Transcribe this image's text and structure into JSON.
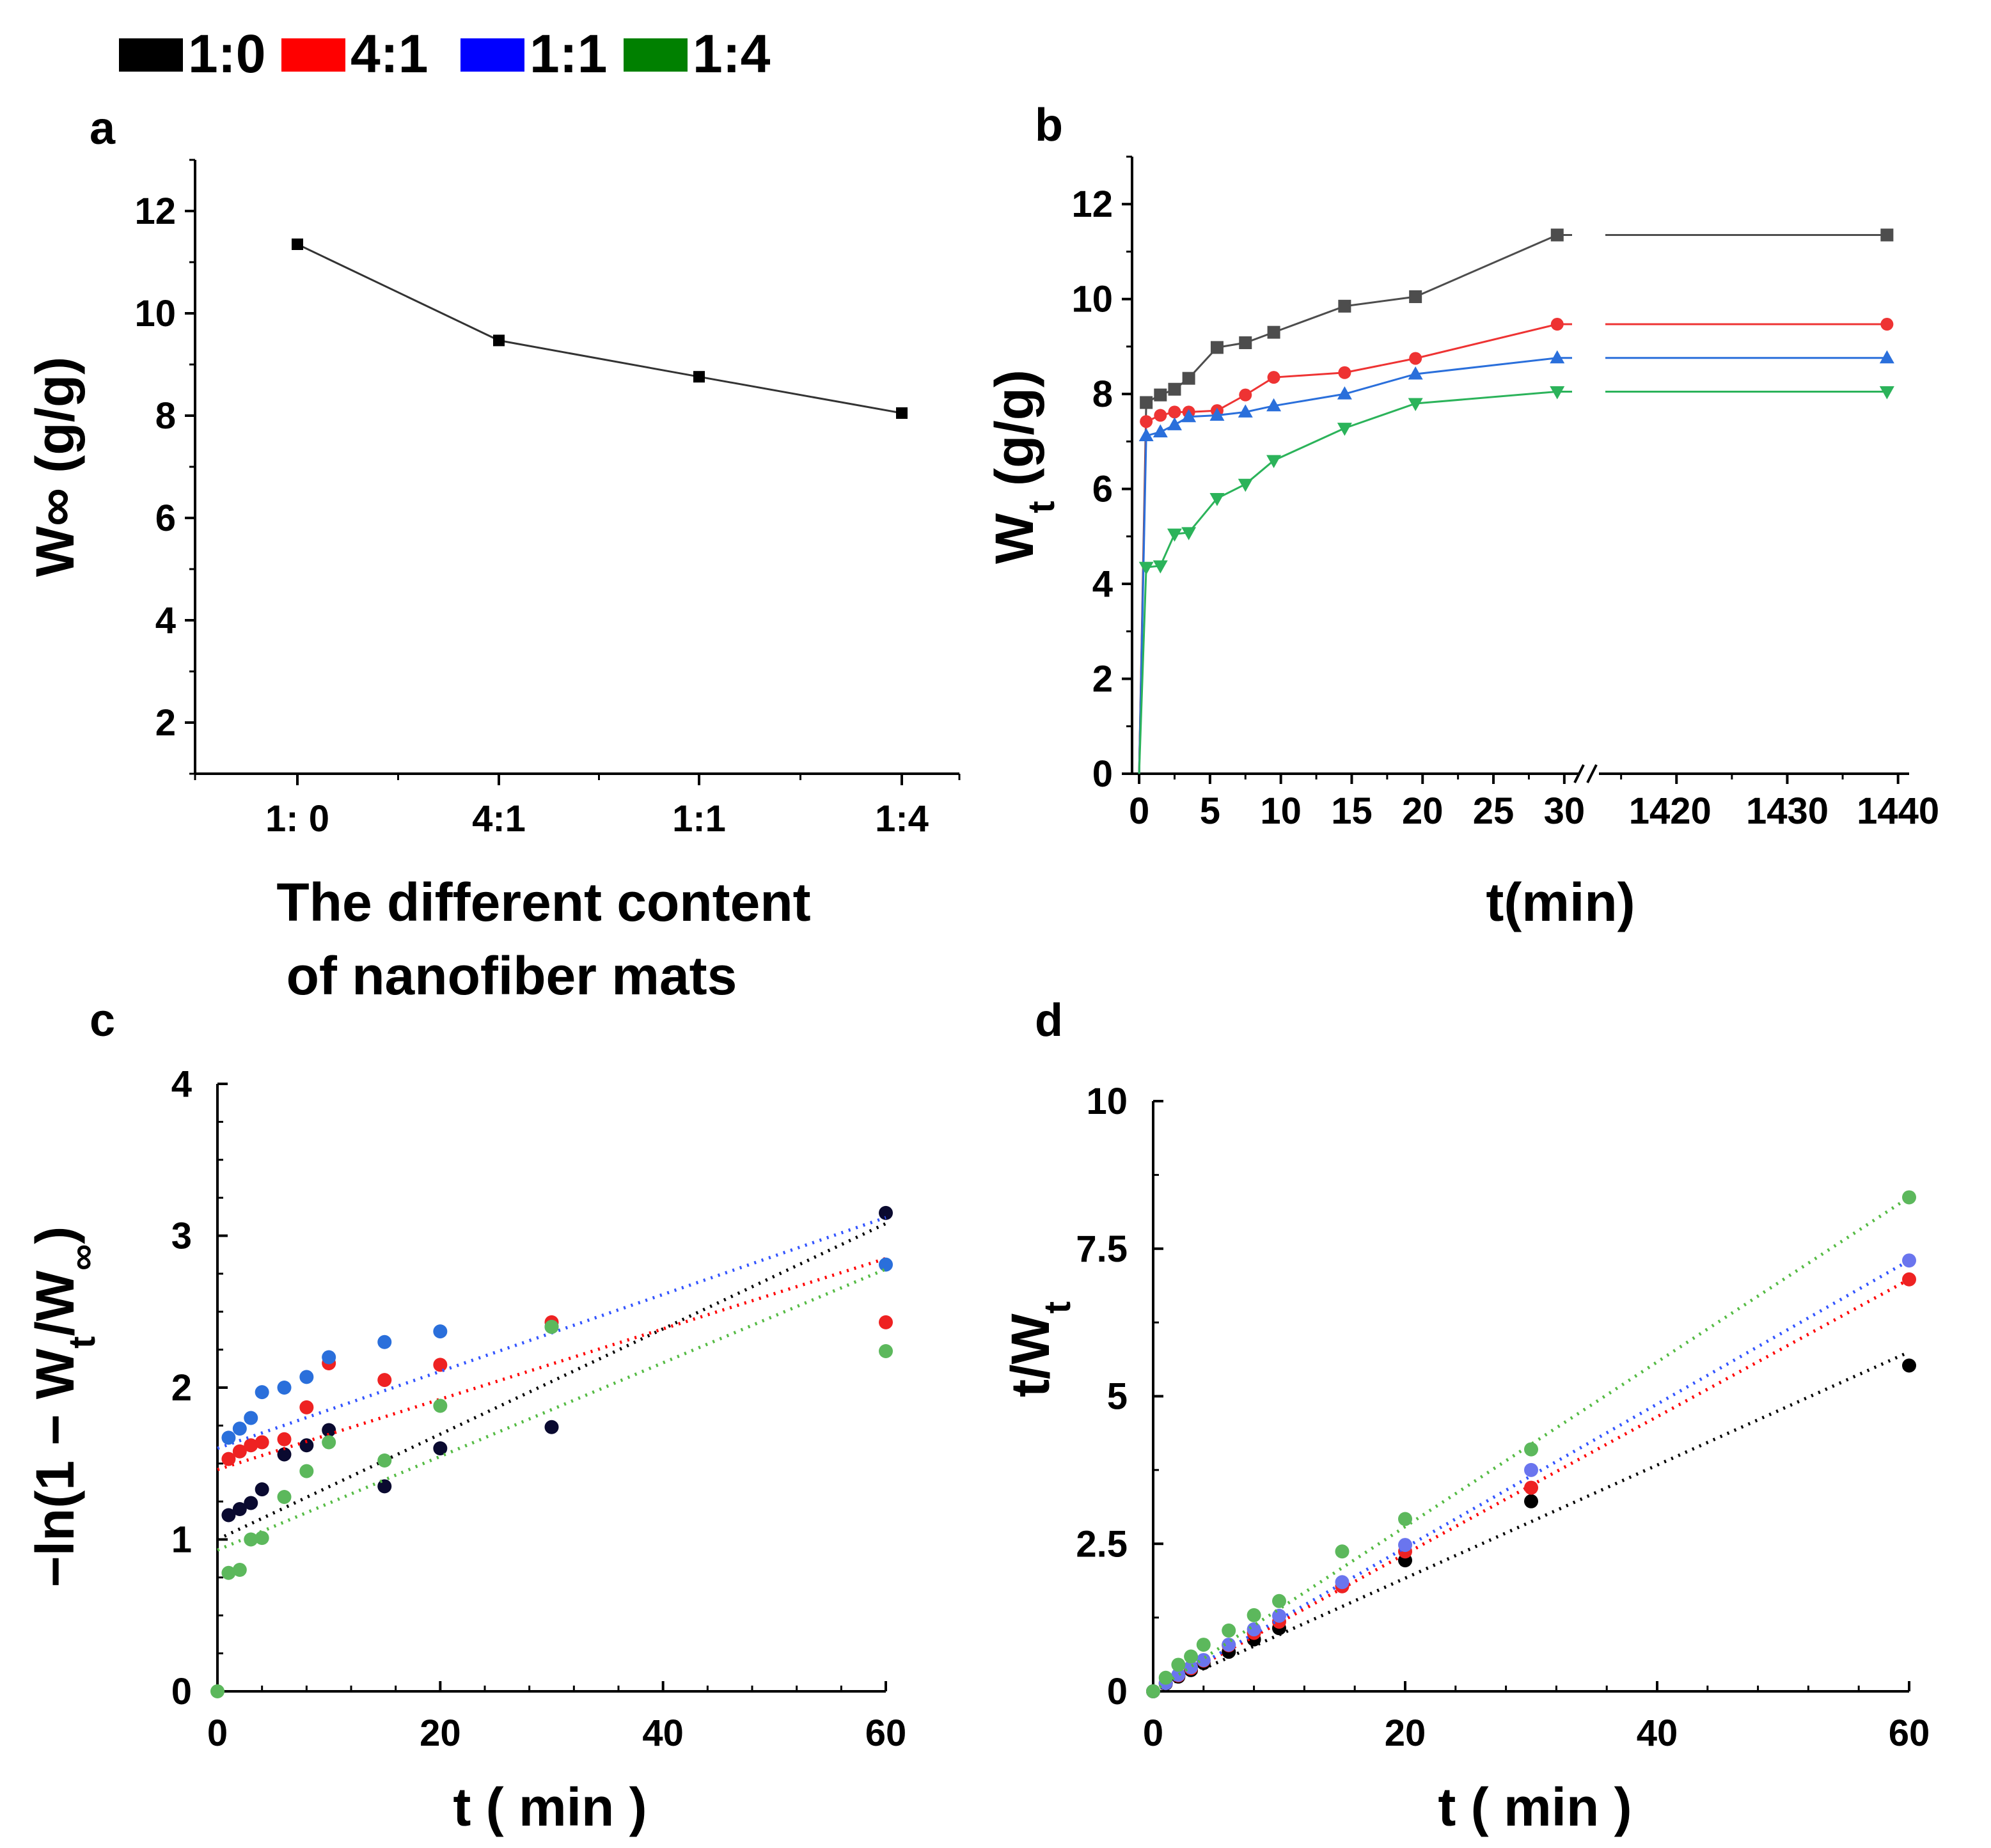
{
  "legend": [
    {
      "label": "1:0",
      "color": "#000000"
    },
    {
      "label": "4:1",
      "color": "#ff0000"
    },
    {
      "label": "1:1",
      "color": "#0000ff"
    },
    {
      "label": "1:4",
      "color": "#008000"
    }
  ],
  "chart_data": [
    {
      "id": "a",
      "panel_label": "a",
      "type": "line",
      "categories": [
        "1:0",
        "4:1",
        "1:1",
        "1:4"
      ],
      "category_tick_labels": [
        "1:  0",
        "4:1",
        "1:1",
        "1:4"
      ],
      "values": [
        11.35,
        9.47,
        8.76,
        8.05
      ],
      "ylabel": "W∞ (g/g)",
      "xlabel_lines": [
        "The different content",
        "of nanofiber mats"
      ],
      "ylim": [
        1,
        13
      ],
      "yticks": [
        2,
        4,
        6,
        8,
        10,
        12
      ],
      "color": "#000000"
    },
    {
      "id": "b",
      "panel_label": "b",
      "type": "line",
      "xlabel": "t(min)",
      "ylabel_main": "W",
      "ylabel_sub": "t",
      "ylabel_rest": " (g/g)",
      "ylim": [
        0,
        13
      ],
      "yticks": [
        0,
        2,
        4,
        6,
        8,
        10,
        12
      ],
      "x_segments": [
        {
          "range": [
            -0.5,
            31
          ],
          "ticks": [
            0,
            5,
            10,
            15,
            20,
            25,
            30
          ]
        },
        {
          "range": [
            1413,
            1441
          ],
          "ticks": [
            1420,
            1430,
            1440
          ]
        }
      ],
      "series": [
        {
          "name": "1:0",
          "color": "#4d4d4d",
          "marker": "square",
          "x": [
            0,
            0.5,
            1.5,
            2.5,
            3.5,
            5.5,
            7.5,
            9.5,
            14.5,
            19.5,
            29.5,
            1439
          ],
          "y": [
            0,
            7.82,
            7.98,
            8.1,
            8.33,
            8.98,
            9.08,
            9.3,
            9.85,
            10.05,
            11.35,
            11.35
          ]
        },
        {
          "name": "4:1",
          "color": "#ee3333",
          "marker": "circle",
          "x": [
            0,
            0.5,
            1.5,
            2.5,
            3.5,
            5.5,
            7.5,
            9.5,
            14.5,
            19.5,
            29.5,
            1439
          ],
          "y": [
            0,
            7.42,
            7.55,
            7.62,
            7.62,
            7.65,
            7.98,
            8.35,
            8.45,
            8.75,
            9.47,
            9.47
          ]
        },
        {
          "name": "1:1",
          "color": "#2a6fdb",
          "marker": "triangle-up",
          "x": [
            0,
            0.5,
            1.5,
            2.5,
            3.5,
            5.5,
            7.5,
            9.5,
            14.5,
            19.5,
            29.5,
            1439
          ],
          "y": [
            0,
            7.12,
            7.2,
            7.35,
            7.52,
            7.55,
            7.62,
            7.75,
            8.0,
            8.42,
            8.76,
            8.76
          ]
        },
        {
          "name": "1:4",
          "color": "#2bb35a",
          "marker": "triangle-down",
          "x": [
            0,
            0.5,
            1.5,
            2.5,
            3.5,
            5.5,
            7.5,
            9.5,
            14.5,
            19.5,
            29.5,
            1439
          ],
          "y": [
            0,
            4.35,
            4.38,
            5.05,
            5.08,
            5.8,
            6.1,
            6.6,
            7.28,
            7.8,
            8.05,
            8.05
          ]
        }
      ]
    },
    {
      "id": "c",
      "panel_label": "c",
      "type": "scatter",
      "xlabel": "t ( min )",
      "ylabel_parts": [
        "−ln(1 − W",
        "t",
        "/W",
        "∞",
        ")"
      ],
      "xlim": [
        0,
        60
      ],
      "ylim": [
        0,
        4
      ],
      "xticks": [
        0,
        20,
        40,
        60
      ],
      "yticks": [
        0,
        1,
        2,
        3,
        4
      ],
      "series": [
        {
          "name": "1:0",
          "color": "#0a0a30",
          "fit_color": "#000000",
          "x": [
            1,
            2,
            3,
            4,
            6,
            8,
            10,
            15,
            20,
            30,
            60
          ],
          "y": [
            1.16,
            1.2,
            1.24,
            1.33,
            1.56,
            1.62,
            1.72,
            1.35,
            1.6,
            1.74,
            3.15
          ],
          "fit": [
            1.0,
            3.08
          ]
        },
        {
          "name": "4:1",
          "color": "#ee2222",
          "fit_color": "#ff0000",
          "x": [
            1,
            2,
            3,
            4,
            6,
            8,
            10,
            15,
            20,
            30,
            60
          ],
          "y": [
            1.53,
            1.58,
            1.62,
            1.64,
            1.66,
            1.87,
            2.16,
            2.05,
            2.15,
            2.43,
            2.43
          ],
          "fit": [
            1.46,
            2.85
          ]
        },
        {
          "name": "1:1",
          "color": "#2a6fdb",
          "fit_color": "#3355ff",
          "x": [
            1,
            2,
            3,
            4,
            6,
            8,
            10,
            15,
            20,
            30,
            60
          ],
          "y": [
            1.67,
            1.73,
            1.8,
            1.97,
            2.0,
            2.07,
            2.2,
            2.3,
            2.37,
            2.4,
            2.81
          ],
          "fit": [
            1.6,
            3.12
          ]
        },
        {
          "name": "1:4",
          "color": "#5cb85c",
          "fit_color": "#55bb44",
          "x": [
            0,
            1,
            2,
            3,
            4,
            6,
            8,
            10,
            15,
            20,
            30,
            60
          ],
          "y": [
            0,
            0.78,
            0.8,
            1.0,
            1.01,
            1.28,
            1.45,
            1.64,
            1.52,
            1.88,
            2.4,
            2.24
          ],
          "fit": [
            0.93,
            2.78
          ]
        }
      ]
    },
    {
      "id": "d",
      "panel_label": "d",
      "type": "scatter",
      "xlabel": "t ( min )",
      "ylabel_main": "t/W",
      "ylabel_sub": "t",
      "xlim": [
        0,
        60
      ],
      "ylim": [
        0,
        10
      ],
      "xticks": [
        0,
        20,
        40,
        60
      ],
      "yticks": [
        0,
        2.5,
        5,
        7.5,
        10
      ],
      "ytick_labels": [
        "0",
        "2.5",
        "5",
        "7.5",
        "10"
      ],
      "series": [
        {
          "name": "1:0",
          "color": "#000000",
          "fit_color": "#000000",
          "x": [
            0,
            1,
            2,
            3,
            4,
            6,
            8,
            10,
            20,
            30,
            60
          ],
          "y": [
            0,
            0.13,
            0.25,
            0.36,
            0.48,
            0.67,
            0.88,
            1.07,
            2.22,
            3.22,
            5.52
          ],
          "fit_end": 5.75
        },
        {
          "name": "4:1",
          "color": "#ee2222",
          "fit_color": "#ff0000",
          "x": [
            0,
            1,
            2,
            3,
            4,
            6,
            8,
            10,
            15,
            20,
            30,
            60
          ],
          "y": [
            0,
            0.14,
            0.27,
            0.39,
            0.52,
            0.78,
            0.99,
            1.18,
            1.78,
            2.37,
            3.45,
            6.98
          ],
          "fit_end": 6.98
        },
        {
          "name": "1:1",
          "color": "#6a75ee",
          "fit_color": "#3355ff",
          "x": [
            0,
            1,
            2,
            3,
            4,
            6,
            8,
            10,
            15,
            20,
            30,
            60
          ],
          "y": [
            0,
            0.14,
            0.28,
            0.41,
            0.53,
            0.79,
            1.05,
            1.28,
            1.85,
            2.48,
            3.75,
            7.3
          ],
          "fit_end": 7.3
        },
        {
          "name": "1:4",
          "color": "#5cb85c",
          "fit_color": "#55bb44",
          "x": [
            0,
            1,
            2,
            3,
            4,
            6,
            8,
            10,
            15,
            20,
            30,
            60
          ],
          "y": [
            0,
            0.23,
            0.45,
            0.59,
            0.79,
            1.03,
            1.29,
            1.53,
            2.37,
            2.92,
            4.1,
            8.37
          ],
          "fit_end": 8.37
        }
      ]
    }
  ]
}
